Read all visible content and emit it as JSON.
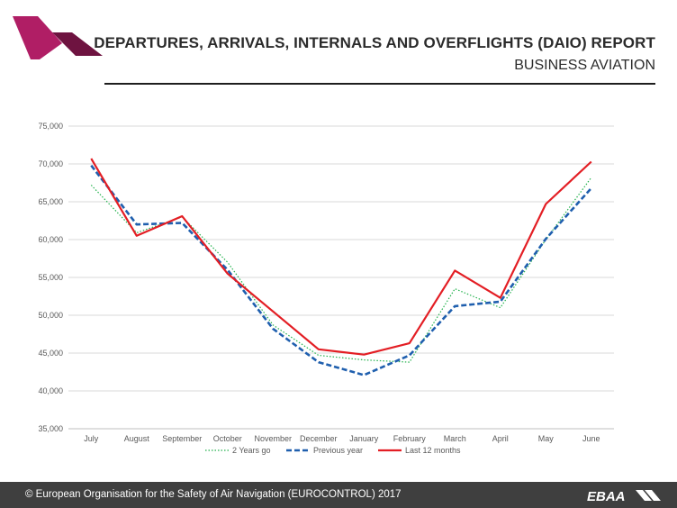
{
  "header": {
    "title": "DEPARTURES, ARRIVALS, INTERNALS AND OVERFLIGHTS (DAIO) REPORT",
    "subtitle": "BUSINESS AVIATION"
  },
  "footer": {
    "copyright": "© European Organisation for the Safety of Air Navigation (EUROCONTROL) 2017",
    "logo_text": "EBAA"
  },
  "colors": {
    "two_years_ago": "#22b14c",
    "previous_year": "#1f5fae",
    "last_12_months": "#e31e24",
    "logo_magenta": "#a3195b"
  },
  "chart_data": {
    "type": "line",
    "categories": [
      "July",
      "August",
      "September",
      "October",
      "November",
      "December",
      "January",
      "February",
      "March",
      "April",
      "May",
      "June"
    ],
    "ylim": [
      35000,
      75000
    ],
    "yticks": [
      "35,000",
      "40,000",
      "45,000",
      "50,000",
      "55,000",
      "60,000",
      "65,000",
      "70,000",
      "75,000"
    ],
    "grid": true,
    "legend_position": "bottom",
    "series": [
      {
        "name": "2 Years go",
        "style": "dotted",
        "values": [
          67200,
          60900,
          63000,
          57000,
          48700,
          44700,
          44100,
          43800,
          53500,
          51000,
          60000,
          68200
        ]
      },
      {
        "name": "Previous year",
        "style": "dashed",
        "values": [
          69800,
          62000,
          62200,
          56000,
          48200,
          43800,
          42100,
          44700,
          51200,
          51800,
          60100,
          66800
        ]
      },
      {
        "name": "Last 12 months",
        "style": "solid",
        "values": [
          70700,
          60500,
          63100,
          55500,
          50500,
          45500,
          44800,
          46300,
          55900,
          52300,
          64700,
          70300
        ]
      }
    ]
  }
}
